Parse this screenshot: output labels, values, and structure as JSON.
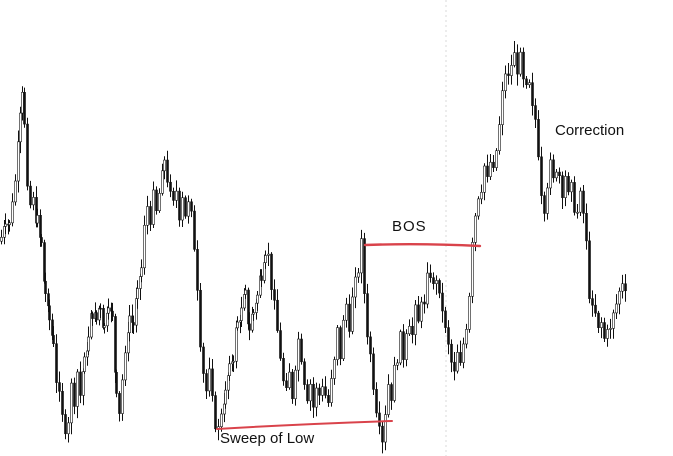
{
  "chart_data": {
    "type": "candlestick",
    "title": "",
    "xlabel": "",
    "ylabel": "",
    "grid": false,
    "legend": "none",
    "colors": {
      "background": "#ffffff",
      "candle": "#111111",
      "marker_line": "#d9434b",
      "separator": "#d8d8d8"
    },
    "y_range": [
      0,
      100
    ],
    "price_path": [
      [
        0,
        52
      ],
      [
        4,
        57
      ],
      [
        8,
        55
      ],
      [
        11,
        62
      ],
      [
        14,
        66
      ],
      [
        17,
        78
      ],
      [
        19,
        85
      ],
      [
        21,
        90
      ],
      [
        23,
        80
      ],
      [
        26,
        63
      ],
      [
        29,
        60
      ],
      [
        32,
        61
      ],
      [
        36,
        56
      ],
      [
        40,
        50
      ],
      [
        44,
        38
      ],
      [
        48,
        31
      ],
      [
        52,
        26
      ],
      [
        55,
        16
      ],
      [
        58,
        11
      ],
      [
        61,
        6
      ],
      [
        64,
        4
      ],
      [
        67,
        6
      ],
      [
        70,
        14
      ],
      [
        73,
        11
      ],
      [
        76,
        18
      ],
      [
        79,
        12
      ],
      [
        83,
        20
      ],
      [
        87,
        26
      ],
      [
        91,
        33
      ],
      [
        95,
        31
      ],
      [
        99,
        35
      ],
      [
        103,
        29
      ],
      [
        107,
        36
      ],
      [
        111,
        31
      ],
      [
        115,
        14
      ],
      [
        118,
        8
      ],
      [
        121,
        16
      ],
      [
        124,
        21
      ],
      [
        128,
        32
      ],
      [
        132,
        30
      ],
      [
        136,
        37
      ],
      [
        140,
        44
      ],
      [
        143,
        54
      ],
      [
        146,
        60
      ],
      [
        149,
        57
      ],
      [
        152,
        62
      ],
      [
        155,
        58
      ],
      [
        158,
        63
      ],
      [
        161,
        67
      ],
      [
        163,
        72
      ],
      [
        166,
        67
      ],
      [
        169,
        62
      ],
      [
        172,
        60
      ],
      [
        175,
        64
      ],
      [
        178,
        58
      ],
      [
        181,
        63
      ],
      [
        184,
        58
      ],
      [
        187,
        60
      ],
      [
        190,
        57
      ],
      [
        193,
        50
      ],
      [
        196,
        40
      ],
      [
        199,
        26
      ],
      [
        202,
        18
      ],
      [
        205,
        13
      ],
      [
        208,
        17
      ],
      [
        211,
        10
      ],
      [
        214,
        5
      ],
      [
        217,
        3
      ],
      [
        220,
        8
      ],
      [
        224,
        12
      ],
      [
        228,
        18
      ],
      [
        232,
        22
      ],
      [
        236,
        30
      ],
      [
        240,
        33
      ],
      [
        244,
        37
      ],
      [
        248,
        29
      ],
      [
        252,
        33
      ],
      [
        256,
        37
      ],
      [
        260,
        43
      ],
      [
        264,
        49
      ],
      [
        267,
        47
      ],
      [
        270,
        40
      ],
      [
        273,
        34
      ],
      [
        276,
        28
      ],
      [
        279,
        22
      ],
      [
        282,
        15
      ],
      [
        285,
        12
      ],
      [
        288,
        17
      ],
      [
        291,
        12
      ],
      [
        294,
        20
      ],
      [
        297,
        26
      ],
      [
        300,
        22
      ],
      [
        303,
        16
      ],
      [
        306,
        12
      ],
      [
        309,
        15
      ],
      [
        312,
        9
      ],
      [
        315,
        13
      ],
      [
        318,
        12
      ],
      [
        321,
        15
      ],
      [
        324,
        12
      ],
      [
        327,
        10
      ],
      [
        330,
        15
      ],
      [
        333,
        20
      ],
      [
        336,
        28
      ],
      [
        339,
        22
      ],
      [
        342,
        30
      ],
      [
        345,
        35
      ],
      [
        348,
        30
      ],
      [
        351,
        36
      ],
      [
        354,
        40
      ],
      [
        357,
        44
      ],
      [
        360,
        50
      ],
      [
        363,
        38
      ],
      [
        366,
        28
      ],
      [
        369,
        22
      ],
      [
        372,
        15
      ],
      [
        375,
        9
      ],
      [
        378,
        6
      ],
      [
        381,
        1
      ],
      [
        384,
        8
      ],
      [
        387,
        15
      ],
      [
        390,
        12
      ],
      [
        393,
        18
      ],
      [
        396,
        22
      ],
      [
        399,
        26
      ],
      [
        402,
        22
      ],
      [
        405,
        29
      ],
      [
        408,
        31
      ],
      [
        411,
        27
      ],
      [
        414,
        33
      ],
      [
        417,
        30
      ],
      [
        420,
        37
      ],
      [
        423,
        34
      ],
      [
        426,
        41
      ],
      [
        429,
        43
      ],
      [
        432,
        39
      ],
      [
        435,
        42
      ],
      [
        438,
        36
      ],
      [
        441,
        34
      ],
      [
        444,
        28
      ],
      [
        447,
        24
      ],
      [
        450,
        20
      ],
      [
        453,
        17
      ],
      [
        456,
        22
      ],
      [
        459,
        19
      ],
      [
        462,
        25
      ],
      [
        465,
        30
      ],
      [
        468,
        38
      ],
      [
        471,
        52
      ],
      [
        474,
        58
      ],
      [
        477,
        63
      ],
      [
        480,
        65
      ],
      [
        483,
        70
      ],
      [
        486,
        66
      ],
      [
        489,
        71
      ],
      [
        492,
        68
      ],
      [
        495,
        74
      ],
      [
        498,
        80
      ],
      [
        501,
        88
      ],
      [
        504,
        94
      ],
      [
        507,
        92
      ],
      [
        510,
        96
      ],
      [
        513,
        98
      ],
      [
        516,
        95
      ],
      [
        519,
        97
      ],
      [
        522,
        91
      ],
      [
        525,
        89
      ],
      [
        528,
        90
      ],
      [
        531,
        84
      ],
      [
        534,
        82
      ],
      [
        537,
        74
      ],
      [
        540,
        64
      ],
      [
        543,
        60
      ],
      [
        546,
        66
      ],
      [
        549,
        70
      ],
      [
        552,
        66
      ],
      [
        555,
        70
      ],
      [
        558,
        68
      ],
      [
        561,
        64
      ],
      [
        564,
        68
      ],
      [
        567,
        62
      ],
      [
        570,
        64
      ],
      [
        573,
        60
      ],
      [
        576,
        58
      ],
      [
        579,
        62
      ],
      [
        582,
        58
      ],
      [
        585,
        50
      ],
      [
        588,
        38
      ],
      [
        591,
        33
      ],
      [
        594,
        32
      ],
      [
        597,
        28
      ],
      [
        600,
        30
      ],
      [
        603,
        26
      ],
      [
        606,
        30
      ],
      [
        609,
        28
      ],
      [
        612,
        32
      ],
      [
        615,
        35
      ],
      [
        618,
        38
      ],
      [
        621,
        41
      ],
      [
        624,
        40
      ],
      [
        627,
        42
      ]
    ],
    "annotations": [
      {
        "id": "bos",
        "text": "BOS"
      },
      {
        "id": "correction",
        "text": "Correction"
      },
      {
        "id": "sweep",
        "text": "Sweep of Low"
      }
    ]
  }
}
